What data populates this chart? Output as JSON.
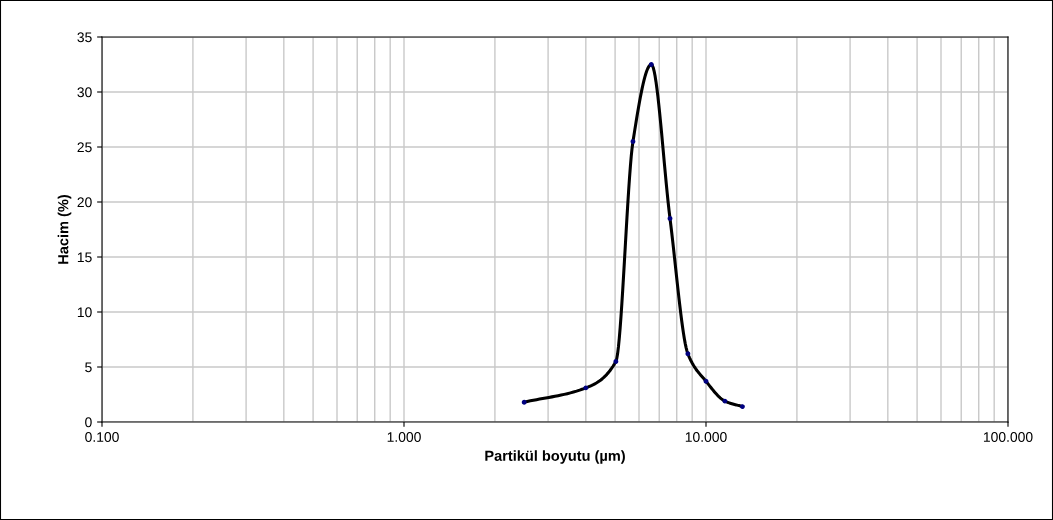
{
  "chart_data": {
    "type": "line",
    "xlabel": "Partikül boyutu (µm)",
    "ylabel": "Hacim (%)",
    "log": "x",
    "x": [
      2.5,
      4.0,
      5.03,
      5.73,
      6.59,
      7.6,
      8.71,
      10.0,
      11.55,
      13.2
    ],
    "series": [
      {
        "color": "#000000",
        "values": [
          1.8,
          3.1,
          5.5,
          25.5,
          32.5,
          18.5,
          6.2,
          3.7,
          1.9,
          1.4
        ]
      }
    ],
    "marker": "circle",
    "xlim": [
      0.1,
      100
    ],
    "xticks": [
      {
        "value": 0.1,
        "label": "0.100"
      },
      {
        "value": 1,
        "label": "1.000"
      },
      {
        "value": 10,
        "label": "10.000"
      },
      {
        "value": 100,
        "label": "100.000"
      }
    ],
    "ylim": [
      0,
      35
    ],
    "yticks": [
      0,
      5,
      10,
      15,
      20,
      25,
      30,
      35
    ],
    "grid": true,
    "legend": false
  }
}
